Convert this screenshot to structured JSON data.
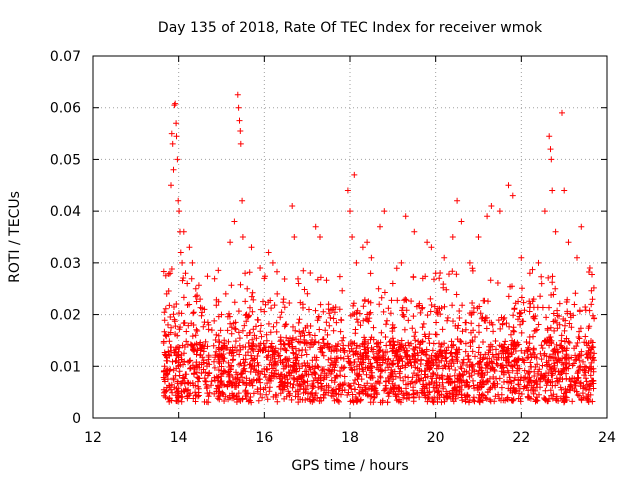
{
  "chart_data": {
    "type": "scatter",
    "title": "Day 135 of 2018, Rate Of TEC Index for receiver wmok",
    "xlabel": "GPS time / hours",
    "ylabel": "ROTI / TECUs",
    "xlim": [
      12,
      24
    ],
    "ylim": [
      0,
      0.07
    ],
    "xticks": [
      12,
      14,
      16,
      18,
      20,
      22,
      24
    ],
    "yticks": [
      0,
      0.01,
      0.02,
      0.03,
      0.04,
      0.05,
      0.06,
      0.07
    ],
    "xtick_labels": [
      "12",
      "14",
      "16",
      "18",
      "20",
      "22",
      "24"
    ],
    "ytick_labels": [
      "0",
      "0.01",
      "0.02",
      "0.03",
      "0.04",
      "0.05",
      "0.06",
      "0.07"
    ],
    "grid": true,
    "marker": "+",
    "color": "#ff0000",
    "data_range_x": [
      13.65,
      23.7
    ],
    "series": [
      {
        "name": "ROTI",
        "points": [
          [
            13.7,
            0.0275
          ],
          [
            13.72,
            0.024
          ],
          [
            13.75,
            0.018
          ],
          [
            13.78,
            0.012
          ],
          [
            13.8,
            0.028
          ],
          [
            13.82,
            0.045
          ],
          [
            13.84,
            0.055
          ],
          [
            13.86,
            0.053
          ],
          [
            13.88,
            0.048
          ],
          [
            13.9,
            0.0605
          ],
          [
            13.92,
            0.0608
          ],
          [
            13.94,
            0.057
          ],
          [
            13.95,
            0.0545
          ],
          [
            13.97,
            0.05
          ],
          [
            13.99,
            0.042
          ],
          [
            14.01,
            0.04
          ],
          [
            14.03,
            0.036
          ],
          [
            14.05,
            0.032
          ],
          [
            14.08,
            0.03
          ],
          [
            14.12,
            0.036
          ],
          [
            14.16,
            0.028
          ],
          [
            14.2,
            0.026
          ],
          [
            14.25,
            0.033
          ],
          [
            14.32,
            0.03
          ],
          [
            14.4,
            0.025
          ],
          [
            14.5,
            0.023
          ],
          [
            14.6,
            0.021
          ],
          [
            14.7,
            0.018
          ],
          [
            15.0,
            0.02
          ],
          [
            15.1,
            0.024
          ],
          [
            15.2,
            0.034
          ],
          [
            15.3,
            0.038
          ],
          [
            15.38,
            0.0625
          ],
          [
            15.4,
            0.06
          ],
          [
            15.42,
            0.0575
          ],
          [
            15.44,
            0.0555
          ],
          [
            15.45,
            0.053
          ],
          [
            15.48,
            0.042
          ],
          [
            15.5,
            0.035
          ],
          [
            15.55,
            0.028
          ],
          [
            15.6,
            0.025
          ],
          [
            15.7,
            0.033
          ],
          [
            15.9,
            0.029
          ],
          [
            16.0,
            0.027
          ],
          [
            16.1,
            0.032
          ],
          [
            16.2,
            0.03
          ],
          [
            16.3,
            0.024
          ],
          [
            16.45,
            0.023
          ],
          [
            16.65,
            0.041
          ],
          [
            16.7,
            0.035
          ],
          [
            16.8,
            0.026
          ],
          [
            16.9,
            0.022
          ],
          [
            17.2,
            0.037
          ],
          [
            17.3,
            0.035
          ],
          [
            17.5,
            0.022
          ],
          [
            17.6,
            0.021
          ],
          [
            17.95,
            0.044
          ],
          [
            18.0,
            0.04
          ],
          [
            18.05,
            0.035
          ],
          [
            18.1,
            0.047
          ],
          [
            18.15,
            0.03
          ],
          [
            18.3,
            0.033
          ],
          [
            18.4,
            0.034
          ],
          [
            18.5,
            0.031
          ],
          [
            18.7,
            0.037
          ],
          [
            18.8,
            0.04
          ],
          [
            19.0,
            0.026
          ],
          [
            19.2,
            0.03
          ],
          [
            19.3,
            0.039
          ],
          [
            19.5,
            0.036
          ],
          [
            19.7,
            0.027
          ],
          [
            19.8,
            0.034
          ],
          [
            19.9,
            0.033
          ],
          [
            20.0,
            0.028
          ],
          [
            20.2,
            0.031
          ],
          [
            20.4,
            0.035
          ],
          [
            20.5,
            0.042
          ],
          [
            20.6,
            0.038
          ],
          [
            20.8,
            0.03
          ],
          [
            21.0,
            0.035
          ],
          [
            21.2,
            0.039
          ],
          [
            21.3,
            0.041
          ],
          [
            21.5,
            0.04
          ],
          [
            21.7,
            0.045
          ],
          [
            21.8,
            0.043
          ],
          [
            22.0,
            0.031
          ],
          [
            22.2,
            0.028
          ],
          [
            22.4,
            0.03
          ],
          [
            22.55,
            0.04
          ],
          [
            22.65,
            0.0545
          ],
          [
            22.68,
            0.052
          ],
          [
            22.7,
            0.05
          ],
          [
            22.72,
            0.044
          ],
          [
            22.8,
            0.036
          ],
          [
            22.95,
            0.059
          ],
          [
            23.0,
            0.044
          ],
          [
            23.1,
            0.034
          ],
          [
            23.3,
            0.031
          ],
          [
            23.4,
            0.037
          ],
          [
            23.6,
            0.029
          ]
        ]
      }
    ]
  }
}
